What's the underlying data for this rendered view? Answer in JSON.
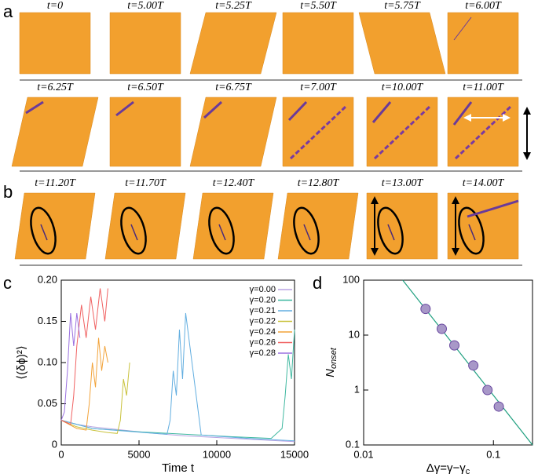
{
  "panel_labels": [
    "a",
    "b",
    "c",
    "d"
  ],
  "snapshots": {
    "a_row1": [
      "t=0",
      "t=5.00T",
      "t=5.25T",
      "t=5.50T",
      "t=5.75T",
      "t=6.00T"
    ],
    "a_row2": [
      "t=6.25T",
      "t=6.50T",
      "t=6.75T",
      "t=7.00T",
      "t=10.00T",
      "t=11.00T"
    ],
    "b_row": [
      "t=11.20T",
      "t=11.70T",
      "t=12.40T",
      "t=12.80T",
      "t=13.00T",
      "t=14.00T"
    ]
  },
  "chart_data": [
    {
      "type": "line",
      "y_label": "⟨(δϕ)²⟩",
      "x_label": "Time t",
      "xlim": [
        0,
        15000
      ],
      "xticks": [
        0,
        5000,
        10000,
        15000
      ],
      "ylim": [
        0,
        0.2
      ],
      "yticks": [
        0,
        0.05,
        {
          "value": 0.1,
          "label": "0.10"
        },
        0.15,
        {
          "value": 0.2,
          "label": "0.20"
        }
      ],
      "series": [
        {
          "name": "γ=0.00",
          "color": "#b9a3e3",
          "x": [
            0,
            1000,
            2000,
            4000,
            6000,
            8000,
            10000,
            12000,
            14000,
            15000
          ],
          "values": [
            0.03,
            0.025,
            0.022,
            0.018,
            0.014,
            0.011,
            0.009,
            0.007,
            0.005,
            0.004
          ]
        },
        {
          "name": "γ=0.20",
          "color": "#3fb8a0",
          "x": [
            0,
            2000,
            5000,
            8000,
            11000,
            13500,
            14200,
            14400,
            14600,
            14800,
            15000
          ],
          "values": [
            0.03,
            0.02,
            0.016,
            0.013,
            0.01,
            0.008,
            0.02,
            0.06,
            0.11,
            0.08,
            0.14
          ]
        },
        {
          "name": "γ=0.21",
          "color": "#62aee0",
          "x": [
            0,
            2000,
            4000,
            6000,
            6800,
            7000,
            7200,
            7400,
            7600,
            7800,
            8000,
            9000,
            12000,
            15000
          ],
          "values": [
            0.03,
            0.02,
            0.017,
            0.014,
            0.013,
            0.03,
            0.09,
            0.06,
            0.14,
            0.08,
            0.16,
            0.012,
            0.008,
            0.005
          ]
        },
        {
          "name": "γ=0.22",
          "color": "#c9c23c",
          "x": [
            0,
            1000,
            2000,
            3000,
            3600,
            3800,
            4000,
            4200,
            4400
          ],
          "values": [
            0.03,
            0.022,
            0.018,
            0.015,
            0.014,
            0.03,
            0.08,
            0.06,
            0.1
          ]
        },
        {
          "name": "γ=0.24",
          "color": "#f2a33a",
          "x": [
            0,
            1000,
            1600,
            1800,
            2000,
            2200,
            2400,
            2600,
            2800,
            3000
          ],
          "values": [
            0.03,
            0.02,
            0.018,
            0.05,
            0.1,
            0.07,
            0.13,
            0.09,
            0.12,
            0.1
          ]
        },
        {
          "name": "γ=0.26",
          "color": "#f06262",
          "x": [
            0,
            600,
            800,
            1000,
            1300,
            1600,
            1900,
            2200,
            2500,
            2800,
            3000
          ],
          "values": [
            0.03,
            0.025,
            0.06,
            0.12,
            0.17,
            0.13,
            0.18,
            0.14,
            0.19,
            0.15,
            0.19
          ]
        },
        {
          "name": "γ=0.28",
          "color": "#9a70e0",
          "x": [
            0,
            200,
            400,
            600,
            800,
            1000,
            1200
          ],
          "values": [
            0.03,
            0.04,
            0.09,
            0.16,
            0.12,
            0.16,
            0.13
          ]
        }
      ]
    },
    {
      "type": "scatter",
      "xscale": "log",
      "yscale": "log",
      "x_label": {
        "main": "Δγ=γ−γ",
        "sub": "c"
      },
      "y_label": {
        "main": "N",
        "sub": "onset"
      },
      "xlim": [
        0.01,
        0.2
      ],
      "xticks": [
        0.01,
        0.1
      ],
      "ylim": [
        0.1,
        100
      ],
      "yticks": [
        0.1,
        1,
        10,
        100
      ],
      "points": {
        "color": "#a898c8",
        "x": [
          0.03,
          0.04,
          0.05,
          0.07,
          0.09,
          0.11
        ],
        "values": [
          30,
          13,
          6.5,
          2.8,
          1,
          0.5
        ]
      },
      "fit_line": {
        "color": "#20a080",
        "x": [
          0.02,
          0.2
        ],
        "values": [
          100,
          0.1
        ]
      }
    }
  ]
}
